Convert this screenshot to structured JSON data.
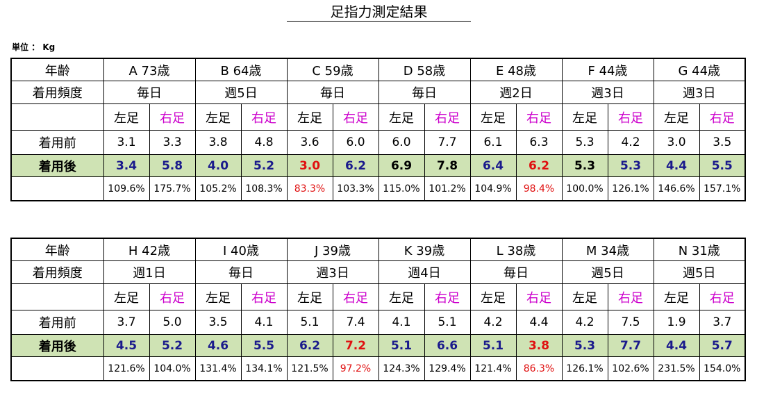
{
  "title": "足指力測定結果",
  "unit_label": "単位 ： Kg",
  "row_labels": {
    "age": "年齢",
    "frequency": "着用頻度",
    "before": "着用前",
    "after": "着用後"
  },
  "foot_labels": {
    "left": "左足",
    "right": "右足"
  },
  "colors": {
    "after_row_bg": "#cfe3b4",
    "navy": "#1a1a8c",
    "red": "#e01010",
    "right_label": "#cc00cc"
  },
  "tables": [
    {
      "subjects": [
        {
          "id": "A 73歳",
          "freq": "毎日",
          "before": [
            "3.1",
            "3.3"
          ],
          "after": [
            "3.4",
            "5.8"
          ],
          "after_colors": [
            "navy",
            "navy"
          ],
          "pct": [
            "109.6%",
            "175.7%"
          ],
          "pct_colors": [
            "black",
            "black"
          ]
        },
        {
          "id": "B 64歳",
          "freq": "週5日",
          "before": [
            "3.8",
            "4.8"
          ],
          "after": [
            "4.0",
            "5.2"
          ],
          "after_colors": [
            "navy",
            "navy"
          ],
          "pct": [
            "105.2%",
            "108.3%"
          ],
          "pct_colors": [
            "black",
            "black"
          ]
        },
        {
          "id": "C 59歳",
          "freq": "毎日",
          "before": [
            "3.6",
            "6.0"
          ],
          "after": [
            "3.0",
            "6.2"
          ],
          "after_colors": [
            "red",
            "navy"
          ],
          "pct": [
            "83.3%",
            "103.3%"
          ],
          "pct_colors": [
            "red",
            "black"
          ]
        },
        {
          "id": "D 58歳",
          "freq": "毎日",
          "before": [
            "6.0",
            "7.7"
          ],
          "after": [
            "6.9",
            "7.8"
          ],
          "after_colors": [
            "black",
            "black"
          ],
          "pct": [
            "115.0%",
            "101.2%"
          ],
          "pct_colors": [
            "black",
            "black"
          ]
        },
        {
          "id": "E 48歳",
          "freq": "週2日",
          "before": [
            "6.1",
            "6.3"
          ],
          "after": [
            "6.4",
            "6.2"
          ],
          "after_colors": [
            "navy",
            "red"
          ],
          "pct": [
            "104.9%",
            "98.4%"
          ],
          "pct_colors": [
            "black",
            "red"
          ]
        },
        {
          "id": "F 44歳",
          "freq": "週3日",
          "before": [
            "5.3",
            "4.2"
          ],
          "after": [
            "5.3",
            "5.3"
          ],
          "after_colors": [
            "black",
            "navy"
          ],
          "pct": [
            "100.0%",
            "126.1%"
          ],
          "pct_colors": [
            "black",
            "black"
          ]
        },
        {
          "id": "G 44歳",
          "freq": "週3日",
          "before": [
            "3.0",
            "3.5"
          ],
          "after": [
            "4.4",
            "5.5"
          ],
          "after_colors": [
            "navy",
            "navy"
          ],
          "pct": [
            "146.6%",
            "157.1%"
          ],
          "pct_colors": [
            "black",
            "black"
          ]
        }
      ]
    },
    {
      "subjects": [
        {
          "id": "H 42歳",
          "freq": "週1日",
          "before": [
            "3.7",
            "5.0"
          ],
          "after": [
            "4.5",
            "5.2"
          ],
          "after_colors": [
            "navy",
            "navy"
          ],
          "pct": [
            "121.6%",
            "104.0%"
          ],
          "pct_colors": [
            "black",
            "black"
          ]
        },
        {
          "id": "I 40歳",
          "freq": "毎日",
          "before": [
            "3.5",
            "4.1"
          ],
          "after": [
            "4.6",
            "5.5"
          ],
          "after_colors": [
            "navy",
            "navy"
          ],
          "pct": [
            "131.4%",
            "134.1%"
          ],
          "pct_colors": [
            "black",
            "black"
          ]
        },
        {
          "id": "J 39歳",
          "freq": "週3日",
          "before": [
            "5.1",
            "7.4"
          ],
          "after": [
            "6.2",
            "7.2"
          ],
          "after_colors": [
            "navy",
            "red"
          ],
          "pct": [
            "121.5%",
            "97.2%"
          ],
          "pct_colors": [
            "black",
            "red"
          ]
        },
        {
          "id": "K 39歳",
          "freq": "週4日",
          "before": [
            "4.1",
            "5.1"
          ],
          "after": [
            "5.1",
            "6.6"
          ],
          "after_colors": [
            "navy",
            "navy"
          ],
          "pct": [
            "124.3%",
            "129.4%"
          ],
          "pct_colors": [
            "black",
            "black"
          ]
        },
        {
          "id": "L 38歳",
          "freq": "毎日",
          "before": [
            "4.2",
            "4.4"
          ],
          "after": [
            "5.1",
            "3.8"
          ],
          "after_colors": [
            "navy",
            "red"
          ],
          "pct": [
            "121.4%",
            "86.3%"
          ],
          "pct_colors": [
            "black",
            "red"
          ]
        },
        {
          "id": "M 34歳",
          "freq": "週5日",
          "before": [
            "4.2",
            "7.5"
          ],
          "after": [
            "5.3",
            "7.7"
          ],
          "after_colors": [
            "navy",
            "navy"
          ],
          "pct": [
            "126.1%",
            "102.6%"
          ],
          "pct_colors": [
            "black",
            "black"
          ]
        },
        {
          "id": "N 31歳",
          "freq": "週5日",
          "before": [
            "1.9",
            "3.7"
          ],
          "after": [
            "4.4",
            "5.7"
          ],
          "after_colors": [
            "navy",
            "navy"
          ],
          "pct": [
            "231.5%",
            "154.0%"
          ],
          "pct_colors": [
            "black",
            "black"
          ]
        }
      ]
    }
  ]
}
